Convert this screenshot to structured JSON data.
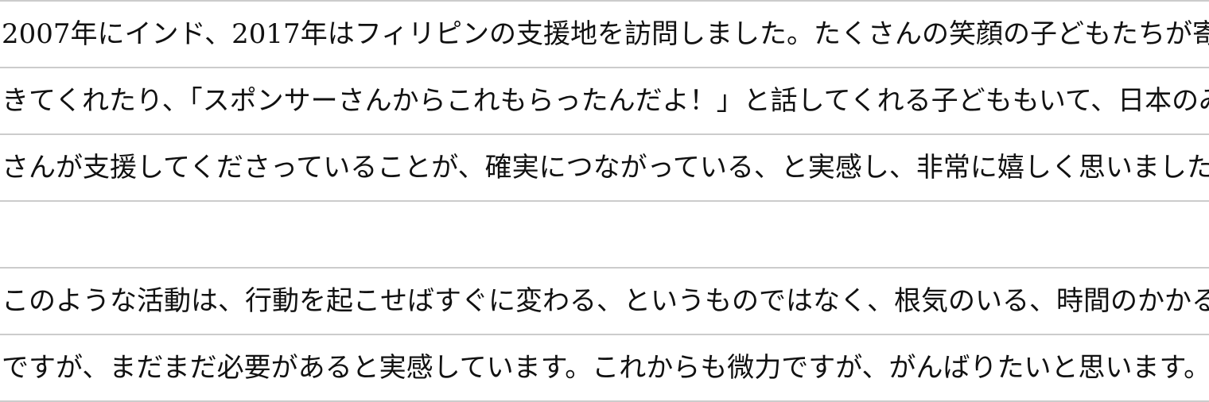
{
  "paragraphs": [
    {
      "lines": [
        "2007年にインド、2017年はフィリピンの支援地を訪問しました。たくさんの笑顔の子どもたちが寄って",
        "きてくれたり、「スポンサーさんからこれもらったんだよ！」と話してくれる子どももいて、日本のみな",
        "さんが支援してくださっていることが、確実につながっている、と実感し、非常に嬉しく思いました。"
      ]
    },
    {
      "lines": [
        "このような活動は、行動を起こせばすぐに変わる、というものではなく、根気のいる、時間のかかること",
        "ですが、まだまだ必要があると実感しています。これからも微力ですが、がんばりたいと思います。"
      ]
    }
  ],
  "colors": {
    "rule": "#cccccc",
    "text": "#111111"
  }
}
